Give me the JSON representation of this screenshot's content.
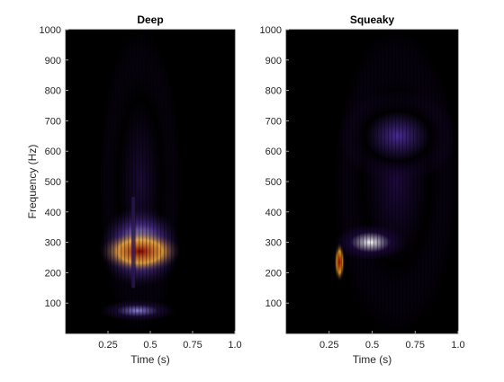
{
  "chart_data": [
    {
      "type": "heatmap",
      "title": "Deep",
      "xlabel": "Time (s)",
      "ylabel": "Frequency (Hz)",
      "xlim": [
        0,
        1.0
      ],
      "ylim": [
        0,
        1000
      ],
      "xticks": [
        0.25,
        0.5,
        0.75,
        1.0
      ],
      "xtick_labels": [
        "0.25",
        "0.5",
        "0.75",
        "1.0"
      ],
      "yticks": [
        100,
        200,
        300,
        400,
        500,
        600,
        700,
        800,
        900,
        1000
      ],
      "ytick_labels": [
        "100",
        "200",
        "300",
        "400",
        "500",
        "600",
        "700",
        "800",
        "900",
        "1000"
      ],
      "colormap": [
        "#000000",
        "#1c0a3a",
        "#4a2c91",
        "#8a7ee0",
        "#ffffff",
        "#f5a623",
        "#e04a14",
        "#8c0000"
      ],
      "energy_regions": [
        {
          "t_start": 0.2,
          "t_end": 0.68,
          "f_low": 200,
          "f_high": 340,
          "level": 0.95
        },
        {
          "t_start": 0.2,
          "t_end": 0.68,
          "f_low": 150,
          "f_high": 420,
          "level": 0.55
        },
        {
          "t_start": 0.2,
          "t_end": 0.65,
          "f_low": 40,
          "f_high": 110,
          "level": 0.45
        },
        {
          "t_start": 0.2,
          "t_end": 0.68,
          "f_low": 0,
          "f_high": 1000,
          "level": 0.15
        }
      ],
      "gap_time": 0.4
    },
    {
      "type": "heatmap",
      "title": "Squeaky",
      "xlabel": "Time (s)",
      "ylabel": "",
      "xlim": [
        0,
        1.0
      ],
      "ylim": [
        0,
        1000
      ],
      "xticks": [
        0.25,
        0.5,
        0.75,
        1.0
      ],
      "xtick_labels": [
        "0.25",
        "0.5",
        "0.75",
        "1.0"
      ],
      "yticks": [
        100,
        200,
        300,
        400,
        500,
        600,
        700,
        800,
        900,
        1000
      ],
      "ytick_labels": [
        "100",
        "200",
        "300",
        "400",
        "500",
        "600",
        "700",
        "800",
        "900",
        "1000"
      ],
      "colormap": [
        "#000000",
        "#1c0a3a",
        "#4a2c91",
        "#8a7ee0",
        "#ffffff",
        "#f5a623",
        "#e04a14",
        "#8c0000"
      ],
      "energy_regions": [
        {
          "t_start": 0.28,
          "t_end": 0.34,
          "f_low": 170,
          "f_high": 300,
          "level": 0.95
        },
        {
          "t_start": 0.28,
          "t_end": 0.7,
          "f_low": 240,
          "f_high": 360,
          "level": 0.5
        },
        {
          "t_start": 0.3,
          "t_end": 1.0,
          "f_low": 500,
          "f_high": 800,
          "level": 0.25
        },
        {
          "t_start": 0.28,
          "t_end": 1.0,
          "f_low": 0,
          "f_high": 1000,
          "level": 0.12
        }
      ]
    }
  ]
}
